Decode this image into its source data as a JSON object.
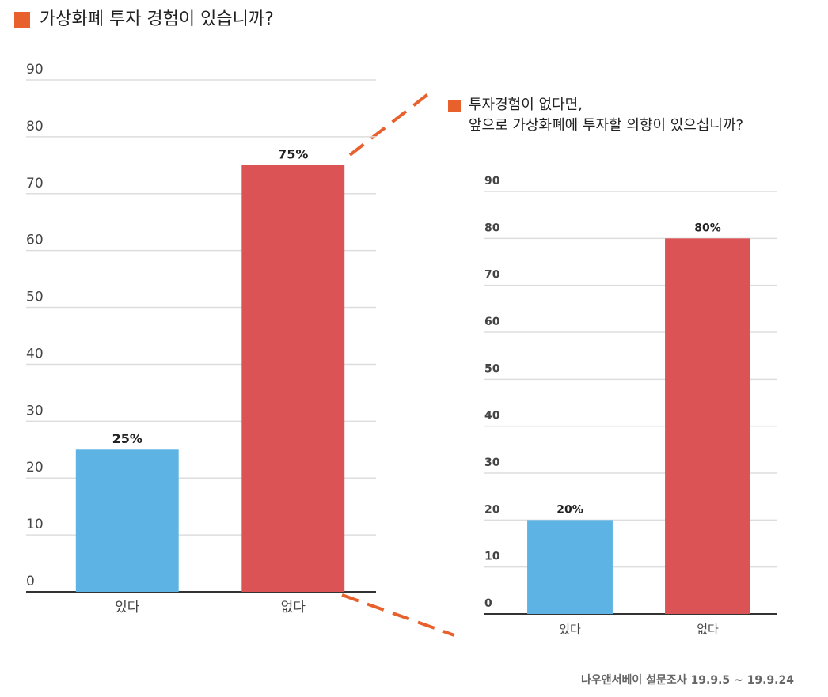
{
  "chart_data": [
    {
      "type": "bar",
      "title": [
        "가상화폐 투자 경험이 있습니까?"
      ],
      "categories": [
        "있다",
        "없다"
      ],
      "values": [
        25,
        75
      ],
      "value_labels": [
        "25%",
        "75%"
      ],
      "colors": [
        "#5db3e4",
        "#dc5356"
      ],
      "ylim": [
        0,
        90
      ],
      "yticks": [
        0,
        10,
        20,
        30,
        40,
        50,
        60,
        70,
        80,
        90
      ],
      "grid": true
    },
    {
      "type": "bar",
      "title": [
        "투자경험이 없다면,",
        "앞으로 가상화폐에 투자할 의향이 있으십니까?"
      ],
      "categories": [
        "있다",
        "없다"
      ],
      "values": [
        20,
        80
      ],
      "value_labels": [
        "20%",
        "80%"
      ],
      "colors": [
        "#5db3e4",
        "#dc5356"
      ],
      "ylim": [
        0,
        90
      ],
      "yticks": [
        0,
        10,
        20,
        30,
        40,
        50,
        60,
        70,
        80,
        90
      ],
      "grid": true
    }
  ],
  "source": "나우앤서베이 설문조사 19.9.5 ~ 19.9.24"
}
